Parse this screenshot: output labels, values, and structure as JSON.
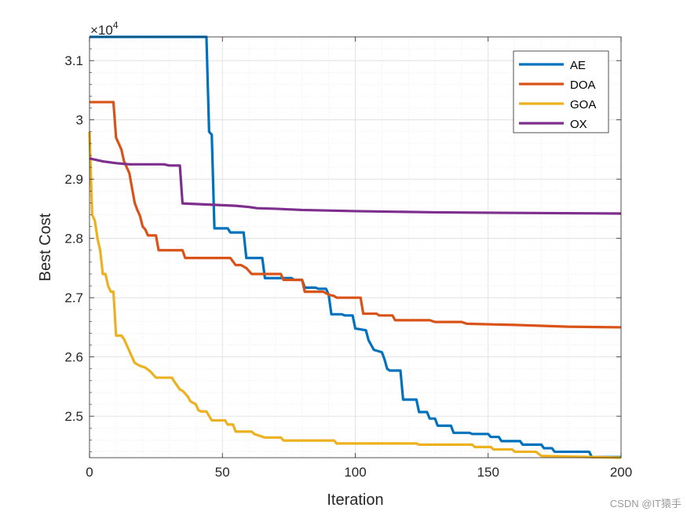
{
  "chart_data": {
    "type": "line",
    "title": "",
    "xlabel": "Iteration",
    "ylabel": "Best Cost",
    "xlim": [
      0,
      200
    ],
    "ylim": [
      24300,
      31400
    ],
    "xticks": [
      0,
      50,
      100,
      150,
      200
    ],
    "xtick_labels": [
      "0",
      "50",
      "100",
      "150",
      "200"
    ],
    "yticks": [
      25000,
      26000,
      27000,
      28000,
      29000,
      30000,
      31000
    ],
    "ytick_labels": [
      "2.5",
      "2.6",
      "2.7",
      "2.8",
      "2.9",
      "3",
      "3.1"
    ],
    "exponent_label": "×10",
    "exponent_power": "4",
    "grid": true,
    "minor_grid": true,
    "legend_position": "top-right",
    "series": [
      {
        "name": "AE",
        "color": "#0072BD",
        "points": [
          [
            0,
            31400
          ],
          [
            44,
            31400
          ],
          [
            45,
            29800
          ],
          [
            46,
            29750
          ],
          [
            47,
            28170
          ],
          [
            52,
            28170
          ],
          [
            53,
            28100
          ],
          [
            58,
            28100
          ],
          [
            59,
            27670
          ],
          [
            65,
            27670
          ],
          [
            66,
            27330
          ],
          [
            76,
            27330
          ],
          [
            77,
            27300
          ],
          [
            80,
            27300
          ],
          [
            81,
            27170
          ],
          [
            85,
            27170
          ],
          [
            86,
            27150
          ],
          [
            89,
            27150
          ],
          [
            90,
            27050
          ],
          [
            91,
            26720
          ],
          [
            95,
            26720
          ],
          [
            96,
            26700
          ],
          [
            99,
            26700
          ],
          [
            100,
            26480
          ],
          [
            104,
            26450
          ],
          [
            105,
            26280
          ],
          [
            107,
            26120
          ],
          [
            110,
            26080
          ],
          [
            111,
            25960
          ],
          [
            112,
            25800
          ],
          [
            113,
            25770
          ],
          [
            117,
            25770
          ],
          [
            118,
            25280
          ],
          [
            123,
            25280
          ],
          [
            124,
            25070
          ],
          [
            127,
            25070
          ],
          [
            128,
            24960
          ],
          [
            130,
            24960
          ],
          [
            131,
            24840
          ],
          [
            136,
            24840
          ],
          [
            137,
            24720
          ],
          [
            143,
            24720
          ],
          [
            144,
            24700
          ],
          [
            150,
            24700
          ],
          [
            151,
            24650
          ],
          [
            154,
            24650
          ],
          [
            155,
            24580
          ],
          [
            162,
            24580
          ],
          [
            163,
            24520
          ],
          [
            170,
            24520
          ],
          [
            171,
            24460
          ],
          [
            174,
            24460
          ],
          [
            175,
            24400
          ],
          [
            188,
            24400
          ],
          [
            189,
            24310
          ],
          [
            200,
            24310
          ]
        ]
      },
      {
        "name": "DOA",
        "color": "#D95319",
        "points": [
          [
            0,
            30300
          ],
          [
            9,
            30300
          ],
          [
            10,
            29700
          ],
          [
            11,
            29600
          ],
          [
            12,
            29500
          ],
          [
            13,
            29300
          ],
          [
            15,
            29100
          ],
          [
            16,
            28850
          ],
          [
            17,
            28600
          ],
          [
            18,
            28480
          ],
          [
            19,
            28380
          ],
          [
            20,
            28200
          ],
          [
            21,
            28150
          ],
          [
            22,
            28050
          ],
          [
            25,
            28050
          ],
          [
            26,
            27800
          ],
          [
            35,
            27800
          ],
          [
            36,
            27670
          ],
          [
            53,
            27670
          ],
          [
            55,
            27550
          ],
          [
            57,
            27550
          ],
          [
            59,
            27500
          ],
          [
            61,
            27400
          ],
          [
            72,
            27400
          ],
          [
            73,
            27300
          ],
          [
            80,
            27300
          ],
          [
            81,
            27100
          ],
          [
            88,
            27100
          ],
          [
            90,
            27050
          ],
          [
            92,
            27030
          ],
          [
            93,
            27000
          ],
          [
            102,
            27000
          ],
          [
            103,
            26730
          ],
          [
            108,
            26730
          ],
          [
            109,
            26700
          ],
          [
            114,
            26700
          ],
          [
            115,
            26620
          ],
          [
            128,
            26620
          ],
          [
            130,
            26590
          ],
          [
            140,
            26590
          ],
          [
            142,
            26560
          ],
          [
            160,
            26540
          ],
          [
            180,
            26510
          ],
          [
            200,
            26500
          ]
        ]
      },
      {
        "name": "GOA",
        "color": "#EDB120",
        "points": [
          [
            0,
            29800
          ],
          [
            1,
            28400
          ],
          [
            2,
            28300
          ],
          [
            3,
            28000
          ],
          [
            4,
            27800
          ],
          [
            5,
            27400
          ],
          [
            6,
            27400
          ],
          [
            7,
            27200
          ],
          [
            8,
            27100
          ],
          [
            9,
            27100
          ],
          [
            10,
            26360
          ],
          [
            12,
            26360
          ],
          [
            13,
            26300
          ],
          [
            15,
            26100
          ],
          [
            16,
            26000
          ],
          [
            17,
            25900
          ],
          [
            19,
            25850
          ],
          [
            21,
            25820
          ],
          [
            23,
            25750
          ],
          [
            25,
            25650
          ],
          [
            31,
            25650
          ],
          [
            32,
            25580
          ],
          [
            34,
            25450
          ],
          [
            35,
            25430
          ],
          [
            37,
            25330
          ],
          [
            38,
            25250
          ],
          [
            40,
            25200
          ],
          [
            41,
            25100
          ],
          [
            42,
            25080
          ],
          [
            44,
            25080
          ],
          [
            46,
            24930
          ],
          [
            51,
            24930
          ],
          [
            52,
            24860
          ],
          [
            54,
            24860
          ],
          [
            55,
            24740
          ],
          [
            61,
            24740
          ],
          [
            62,
            24700
          ],
          [
            66,
            24640
          ],
          [
            72,
            24640
          ],
          [
            73,
            24590
          ],
          [
            92,
            24590
          ],
          [
            93,
            24540
          ],
          [
            123,
            24540
          ],
          [
            124,
            24520
          ],
          [
            144,
            24520
          ],
          [
            145,
            24480
          ],
          [
            151,
            24480
          ],
          [
            152,
            24440
          ],
          [
            159,
            24440
          ],
          [
            160,
            24400
          ],
          [
            168,
            24400
          ],
          [
            170,
            24330
          ],
          [
            200,
            24300
          ]
        ]
      },
      {
        "name": "OX",
        "color": "#7E2F8E",
        "points": [
          [
            0,
            29350
          ],
          [
            5,
            29300
          ],
          [
            10,
            29270
          ],
          [
            15,
            29250
          ],
          [
            28,
            29250
          ],
          [
            30,
            29230
          ],
          [
            34,
            29230
          ],
          [
            35,
            28590
          ],
          [
            45,
            28570
          ],
          [
            55,
            28550
          ],
          [
            60,
            28530
          ],
          [
            63,
            28510
          ],
          [
            70,
            28500
          ],
          [
            80,
            28480
          ],
          [
            100,
            28460
          ],
          [
            130,
            28440
          ],
          [
            160,
            28430
          ],
          [
            200,
            28420
          ]
        ]
      }
    ]
  },
  "watermark": "CSDN @IT猿手"
}
